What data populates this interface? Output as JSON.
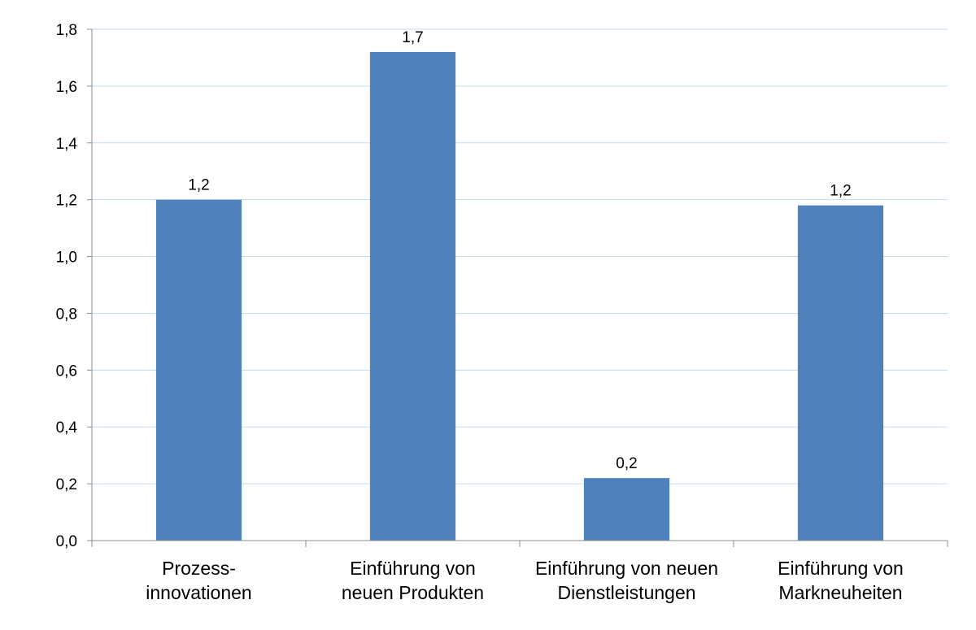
{
  "chart_data": {
    "type": "bar",
    "categories": [
      [
        "Prozess-",
        "innovationen"
      ],
      [
        "Einführung von",
        "neuen Produkten"
      ],
      [
        "Einführung von neuen",
        "Dienstleistungen"
      ],
      [
        "Einführung von",
        "Markneuheiten"
      ]
    ],
    "values": [
      1.2,
      1.72,
      0.22,
      1.18
    ],
    "data_labels": [
      "1,2",
      "1,7",
      "0,2",
      "1,2"
    ],
    "ylim": [
      0,
      1.8
    ],
    "yticks": [
      "0,0",
      "0,2",
      "0,4",
      "0,6",
      "0,8",
      "1,0",
      "1,2",
      "1,4",
      "1,6",
      "1,8"
    ],
    "grid": true,
    "legend": "none",
    "colors": {
      "bar": "#4f81bd",
      "grid": "#c6d9ef",
      "axis": "#8c8c8c"
    }
  }
}
